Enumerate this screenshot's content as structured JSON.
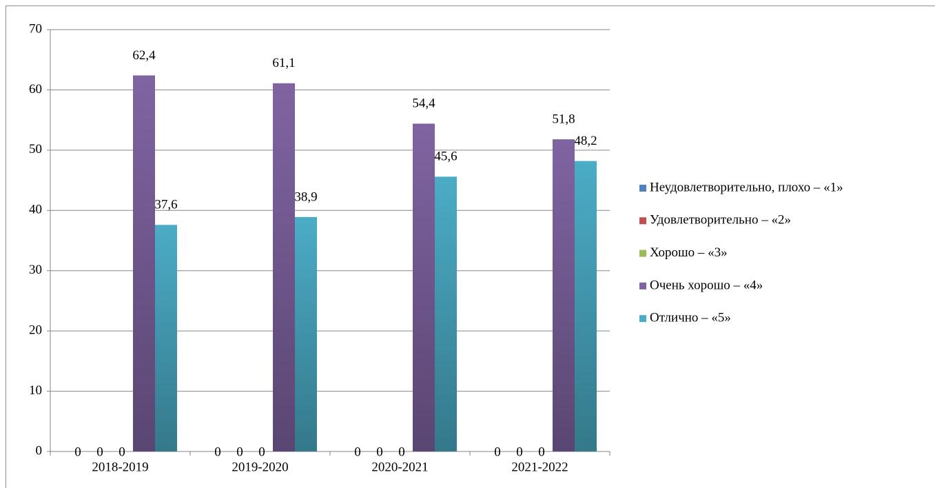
{
  "chart_data": {
    "type": "bar",
    "categories": [
      "2018-2019",
      "2019-2020",
      "2020-2021",
      "2021-2022"
    ],
    "series": [
      {
        "name": "Неудовлетворительно, плохо – «1»",
        "color": "#4f81bd",
        "values": [
          0,
          0,
          0,
          0
        ],
        "value_labels": [
          "0",
          "0",
          "0",
          "0"
        ]
      },
      {
        "name": "Удовлетворительно – «2»",
        "color": "#c0504d",
        "values": [
          0,
          0,
          0,
          0
        ],
        "value_labels": [
          "0",
          "0",
          "0",
          "0"
        ]
      },
      {
        "name": "Хорошо – «3»",
        "color": "#9bbb59",
        "values": [
          0,
          0,
          0,
          0
        ],
        "value_labels": [
          "0",
          "0",
          "0",
          "0"
        ]
      },
      {
        "name": "Очень хорошо – «4»",
        "color": "#8064a2",
        "values": [
          62.4,
          61.1,
          54.4,
          51.8
        ],
        "value_labels": [
          "62,4",
          "61,1",
          "54,4",
          "51,8"
        ]
      },
      {
        "name": "Отлично – «5»",
        "color": "#4bacc6",
        "values": [
          37.6,
          38.9,
          45.6,
          48.2
        ],
        "value_labels": [
          "37,6",
          "38,9",
          "45,6",
          "48,2"
        ]
      }
    ],
    "ylim": [
      0,
      70
    ],
    "yticks": [
      0,
      10,
      20,
      30,
      40,
      50,
      60,
      70
    ],
    "grid": true,
    "legend": "right"
  }
}
